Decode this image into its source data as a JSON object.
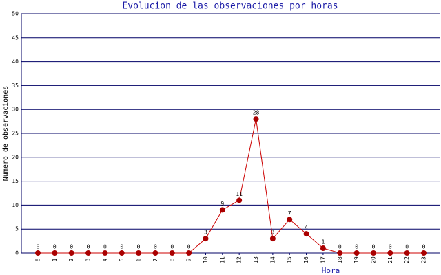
{
  "chart_data": {
    "type": "line",
    "title": "Evolucion de las observaciones por horas",
    "x_label": "Hora",
    "y_label": "Numero de observaciones",
    "categories": [
      "0",
      "1",
      "2",
      "3",
      "4",
      "5",
      "6",
      "7",
      "8",
      "9",
      "10",
      "11",
      "12",
      "13",
      "14",
      "15",
      "16",
      "17",
      "18",
      "19",
      "20",
      "21",
      "22",
      "23"
    ],
    "values": [
      0,
      0,
      0,
      0,
      0,
      0,
      0,
      0,
      0,
      0,
      3,
      9,
      11,
      28,
      3,
      7,
      4,
      1,
      0,
      0,
      0,
      0,
      0,
      0
    ],
    "color": "#cc0000",
    "marker_color": "#aa0000",
    "grid_color": "#000066",
    "title_color": "#1a1aa6",
    "ylim": [
      0,
      50
    ],
    "yticks": [
      0,
      5,
      10,
      15,
      20,
      25,
      30,
      35,
      40,
      45,
      50
    ],
    "grid": true
  }
}
